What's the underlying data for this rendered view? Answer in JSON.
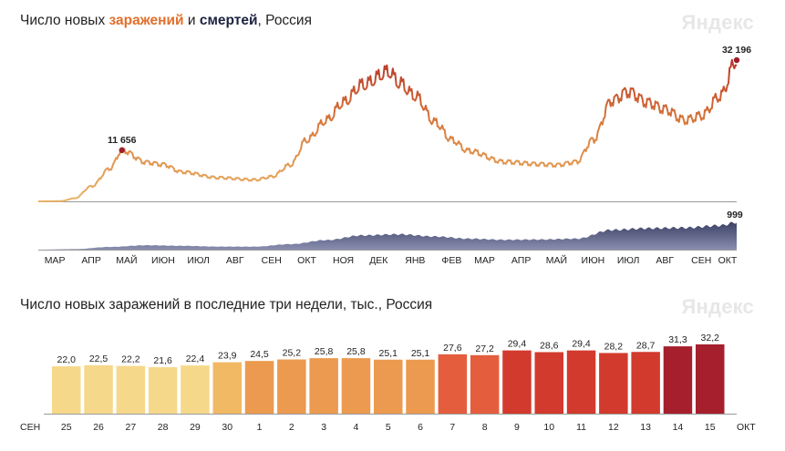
{
  "chart1": {
    "title_pre": "Число новых ",
    "title_infections": "заражений",
    "title_mid": " и ",
    "title_deaths": "смертей",
    "title_post": ", Россия",
    "logo": "Яндекс"
  },
  "chart2": {
    "title": "Число новых заражений в последние три недели, тыс., Россия",
    "logo": "Яндекс"
  },
  "colors": {
    "infections_low": "#e9b468",
    "infections_high": "#b8382a",
    "deaths": "#4b5076",
    "peak_dot": "#9e1d2a"
  },
  "chart_data": [
    {
      "type": "line",
      "title": "Число новых заражений и смертей, Россия",
      "x_tick_labels": [
        "МАР",
        "АПР",
        "МАЙ",
        "ИЮН",
        "ИЮЛ",
        "АВГ",
        "СЕН",
        "ОКТ",
        "НОЯ",
        "ДЕК",
        "ЯНВ",
        "ФЕВ",
        "МАР",
        "АПР",
        "МАЙ",
        "ИЮН",
        "ИЮЛ",
        "АВГ",
        "СЕН",
        "ОКТ"
      ],
      "period": {
        "start": "2020-03",
        "end": "2021-10"
      },
      "series": [
        {
          "name": "заражений",
          "unit": "cases per day",
          "monthly_points": [
            [
              "2020-03-01",
              0
            ],
            [
              "2020-03-20",
              50
            ],
            [
              "2020-04-01",
              700
            ],
            [
              "2020-04-15",
              3400
            ],
            [
              "2020-05-01",
              7500
            ],
            [
              "2020-05-11",
              11656
            ],
            [
              "2020-06-01",
              8900
            ],
            [
              "2020-06-15",
              8400
            ],
            [
              "2020-07-01",
              6700
            ],
            [
              "2020-08-01",
              5400
            ],
            [
              "2020-09-01",
              4900
            ],
            [
              "2020-09-15",
              5600
            ],
            [
              "2020-10-01",
              8300
            ],
            [
              "2020-10-15",
              14000
            ],
            [
              "2020-11-01",
              18500
            ],
            [
              "2020-11-15",
              22500
            ],
            [
              "2020-12-01",
              26500
            ],
            [
              "2020-12-24",
              29500
            ],
            [
              "2021-01-01",
              27000
            ],
            [
              "2021-01-15",
              24000
            ],
            [
              "2021-02-01",
              18000
            ],
            [
              "2021-02-15",
              14000
            ],
            [
              "2021-03-01",
              11500
            ],
            [
              "2021-04-01",
              9000
            ],
            [
              "2021-05-01",
              8500
            ],
            [
              "2021-05-15",
              8300
            ],
            [
              "2021-06-01",
              9000
            ],
            [
              "2021-06-15",
              14000
            ],
            [
              "2021-07-01",
              23000
            ],
            [
              "2021-07-15",
              25000
            ],
            [
              "2021-08-01",
              22500
            ],
            [
              "2021-08-15",
              21000
            ],
            [
              "2021-09-01",
              18500
            ],
            [
              "2021-09-15",
              19500
            ],
            [
              "2021-10-01",
              24000
            ],
            [
              "2021-10-15",
              32196
            ]
          ],
          "peak_labels": [
            {
              "label": "11 656",
              "date": "2020-05-11",
              "value": 11656
            },
            {
              "label": "32 196",
              "date": "2021-10-15",
              "value": 32196
            }
          ],
          "y_range": [
            0,
            32196
          ]
        },
        {
          "name": "смертей",
          "unit": "deaths per day",
          "monthly_points": [
            [
              "2020-03-01",
              0
            ],
            [
              "2020-04-01",
              20
            ],
            [
              "2020-05-01",
              100
            ],
            [
              "2020-06-01",
              160
            ],
            [
              "2020-07-01",
              140
            ],
            [
              "2020-08-01",
              110
            ],
            [
              "2020-09-01",
              110
            ],
            [
              "2020-10-01",
              200
            ],
            [
              "2020-11-01",
              350
            ],
            [
              "2020-12-01",
              520
            ],
            [
              "2021-01-01",
              560
            ],
            [
              "2021-02-01",
              480
            ],
            [
              "2021-03-01",
              400
            ],
            [
              "2021-04-01",
              360
            ],
            [
              "2021-05-01",
              370
            ],
            [
              "2021-06-01",
              400
            ],
            [
              "2021-07-01",
              720
            ],
            [
              "2021-08-01",
              780
            ],
            [
              "2021-09-01",
              800
            ],
            [
              "2021-10-01",
              880
            ],
            [
              "2021-10-15",
              999
            ]
          ],
          "peak_labels": [
            {
              "label": "999",
              "date": "2021-10-15",
              "value": 999
            }
          ],
          "y_range": [
            0,
            999
          ]
        }
      ]
    },
    {
      "type": "bar",
      "title": "Число новых заражений в последние три недели, тыс., Россия",
      "month_start": "СЕН",
      "month_end": "ОКТ",
      "categories": [
        "25",
        "26",
        "27",
        "28",
        "29",
        "30",
        "1",
        "2",
        "3",
        "4",
        "5",
        "6",
        "7",
        "8",
        "9",
        "10",
        "11",
        "12",
        "13",
        "14",
        "15"
      ],
      "weekend": [
        true,
        true,
        false,
        false,
        false,
        false,
        false,
        true,
        true,
        false,
        false,
        false,
        false,
        false,
        true,
        true,
        false,
        false,
        false,
        false,
        false
      ],
      "values": [
        22.0,
        22.5,
        22.2,
        21.6,
        22.4,
        23.9,
        24.5,
        25.2,
        25.8,
        25.8,
        25.1,
        25.1,
        27.6,
        27.2,
        29.4,
        28.6,
        29.4,
        28.2,
        28.7,
        31.3,
        32.2
      ],
      "value_labels": [
        "22,0",
        "22,5",
        "22,2",
        "21,6",
        "22,4",
        "23,9",
        "24,5",
        "25,2",
        "25,8",
        "25,8",
        "25,1",
        "25,1",
        "27,6",
        "27,2",
        "29,4",
        "28,6",
        "29,4",
        "28,2",
        "28,7",
        "31,3",
        "32,2"
      ],
      "ylim": [
        0,
        32.2
      ]
    }
  ]
}
